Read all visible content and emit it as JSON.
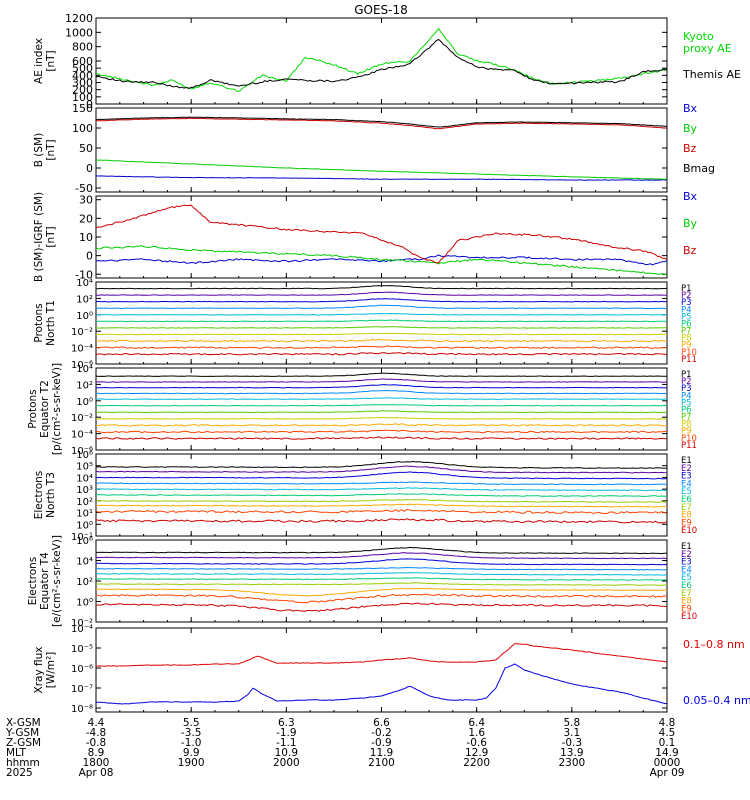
{
  "title": "GOES-18",
  "chart_data": [
    {
      "type": "line",
      "ylabel": [
        "AE index",
        "[nT]"
      ],
      "yscale": "linear",
      "ylim": [
        0,
        1200
      ],
      "yticks": [
        0,
        100,
        200,
        300,
        400,
        500,
        600,
        800,
        1000,
        1200
      ],
      "series": [
        {
          "name": "Kyoto proxy AE",
          "color": "#00dd00",
          "x": [
            0,
            0.3,
            0.6,
            0.8,
            1.0,
            1.2,
            1.5,
            1.75,
            2.0,
            2.2,
            2.5,
            2.75,
            3.0,
            3.3,
            3.6,
            3.8,
            4.0,
            4.2,
            4.4,
            4.6,
            4.8,
            5.0,
            5.2,
            5.5,
            5.75,
            6.0
          ],
          "values": [
            420,
            340,
            260,
            330,
            210,
            300,
            180,
            400,
            320,
            650,
            550,
            420,
            560,
            600,
            1050,
            700,
            600,
            550,
            480,
            350,
            280,
            300,
            320,
            360,
            420,
            480
          ]
        },
        {
          "name": "Themis AE",
          "color": "#000000",
          "x": [
            0,
            0.3,
            0.6,
            0.8,
            1.0,
            1.2,
            1.5,
            1.75,
            2.0,
            2.2,
            2.5,
            2.75,
            3.0,
            3.3,
            3.6,
            3.8,
            4.0,
            4.2,
            4.4,
            4.6,
            4.8,
            5.0,
            5.2,
            5.5,
            5.75,
            6.0
          ],
          "values": [
            390,
            310,
            300,
            250,
            220,
            330,
            250,
            310,
            350,
            330,
            320,
            370,
            480,
            560,
            900,
            650,
            520,
            480,
            470,
            330,
            280,
            290,
            300,
            310,
            450,
            480
          ]
        }
      ]
    },
    {
      "type": "line",
      "ylabel": [
        "B (SM)",
        "[nT]"
      ],
      "yscale": "linear",
      "ylim": [
        -60,
        150
      ],
      "yticks": [
        -50,
        0,
        50,
        100,
        150
      ],
      "series": [
        {
          "name": "Bx",
          "color": "#0000cc",
          "x": [
            0,
            1,
            2,
            3,
            4,
            5,
            6
          ],
          "values": [
            -20,
            -24,
            -25,
            -28,
            -28,
            -30,
            -30
          ]
        },
        {
          "name": "By",
          "color": "#00cc00",
          "x": [
            0,
            1,
            2,
            3,
            4,
            5,
            6
          ],
          "values": [
            20,
            10,
            0,
            -8,
            -15,
            -22,
            -28
          ]
        },
        {
          "name": "Bz",
          "color": "#cc0000",
          "x": [
            0,
            0.5,
            1,
            1.5,
            2,
            2.5,
            3,
            3.3,
            3.6,
            4,
            4.5,
            5,
            5.5,
            6
          ],
          "values": [
            118,
            122,
            124,
            122,
            120,
            118,
            112,
            106,
            98,
            110,
            112,
            110,
            108,
            100
          ]
        },
        {
          "name": "Bmag",
          "color": "#000000",
          "x": [
            0,
            0.5,
            1,
            1.5,
            2,
            2.5,
            3,
            3.3,
            3.6,
            4,
            4.5,
            5,
            5.5,
            6
          ],
          "values": [
            121,
            125,
            127,
            125,
            123,
            121,
            116,
            110,
            102,
            113,
            115,
            113,
            111,
            104
          ]
        }
      ]
    },
    {
      "type": "line",
      "ylabel": [
        "B (SM)-IGRF (SM)",
        "[nT]"
      ],
      "yscale": "linear",
      "ylim": [
        -12,
        32
      ],
      "yticks": [
        -10,
        0,
        10,
        20,
        30
      ],
      "series": [
        {
          "name": "Bx",
          "color": "#0000cc",
          "x": [
            0,
            0.5,
            1,
            1.5,
            2,
            2.5,
            3,
            3.2,
            3.4,
            3.6,
            4,
            4.5,
            5,
            5.5,
            5.8,
            6
          ],
          "values": [
            -3,
            -2,
            -4,
            -2,
            -3,
            -2,
            -3,
            -2,
            -2,
            0,
            -1,
            -1,
            -2,
            -2,
            -5,
            -3
          ]
        },
        {
          "name": "By",
          "color": "#00cc00",
          "x": [
            0,
            0.5,
            1,
            1.5,
            2,
            2.5,
            3,
            3.3,
            3.6,
            4,
            4.5,
            5,
            5.5,
            6
          ],
          "values": [
            4,
            5,
            3,
            2,
            1,
            0,
            -2,
            -3,
            -4,
            -2,
            -4,
            -6,
            -8,
            -10
          ]
        },
        {
          "name": "Bz",
          "color": "#cc0000",
          "x": [
            0,
            0.4,
            0.8,
            1.0,
            1.2,
            1.6,
            2.0,
            2.4,
            2.8,
            3.2,
            3.4,
            3.6,
            3.8,
            4.2,
            4.6,
            5.0,
            5.4,
            5.8,
            6.0
          ],
          "values": [
            15,
            20,
            26,
            27,
            18,
            16,
            14,
            13,
            12,
            5,
            -1,
            -4,
            8,
            12,
            11,
            9,
            5,
            2,
            -2
          ]
        }
      ]
    },
    {
      "type": "line",
      "ylabel": [
        "Protons",
        "North T1"
      ],
      "yscale": "log",
      "ylim": [
        -6,
        4
      ],
      "ytick_labels": [
        "10⁴",
        "10²",
        "10⁰",
        "10⁻²",
        "10⁻⁴",
        "10⁻⁶"
      ],
      "ytick_values": [
        4,
        2,
        0,
        -2,
        -4,
        -6
      ],
      "channels": [
        "P1",
        "P2",
        "P3",
        "P4",
        "P5",
        "P6",
        "P7",
        "P8",
        "P9",
        "P10",
        "P11"
      ],
      "channel_colors": [
        "#000000",
        "#5a00a0",
        "#0000dd",
        "#0088ff",
        "#00bbdd",
        "#00cc77",
        "#55cc00",
        "#cccc00",
        "#ffaa00",
        "#ff4400",
        "#cc0000"
      ],
      "log_levels": [
        3.2,
        2.4,
        1.6,
        0.8,
        0.0,
        -0.8,
        -1.6,
        -2.4,
        -3.2,
        -4.0,
        -4.8
      ]
    },
    {
      "type": "line",
      "ylabel": [
        "Protons",
        "Equator T2",
        "[p/(cm²-s-sr-keV)]"
      ],
      "yscale": "log",
      "ylim": [
        -6,
        4
      ],
      "ytick_labels": [
        "10⁴",
        "10²",
        "10⁰",
        "10⁻²",
        "10⁻⁴",
        "10⁻⁶"
      ],
      "ytick_values": [
        4,
        2,
        0,
        -2,
        -4,
        -6
      ],
      "channels": [
        "P1",
        "P2",
        "P3",
        "P4",
        "P5",
        "P6",
        "P7",
        "P8",
        "P9",
        "P10",
        "P11"
      ],
      "channel_colors": [
        "#000000",
        "#5a00a0",
        "#0000dd",
        "#0088ff",
        "#00bbdd",
        "#00cc77",
        "#55cc00",
        "#cccc00",
        "#ffaa00",
        "#ff4400",
        "#cc0000"
      ],
      "log_levels": [
        3.0,
        2.3,
        1.6,
        0.9,
        0.2,
        -0.6,
        -1.4,
        -2.2,
        -3.0,
        -3.8,
        -4.6
      ]
    },
    {
      "type": "line",
      "ylabel": [
        "Electrons",
        "North T3"
      ],
      "yscale": "log",
      "ylim": [
        -1,
        6
      ],
      "ytick_labels": [
        "10⁶",
        "10⁵",
        "10⁴",
        "10³",
        "10²",
        "10¹",
        "10⁰",
        "10⁻¹"
      ],
      "ytick_values": [
        6,
        5,
        4,
        3,
        2,
        1,
        0,
        -1
      ],
      "channels": [
        "E1",
        "E2",
        "E3",
        "E4",
        "E5",
        "E6",
        "E7",
        "E8",
        "E9",
        "E10"
      ],
      "channel_colors": [
        "#000000",
        "#5a00a0",
        "#0000dd",
        "#0088ff",
        "#00bbdd",
        "#00cc77",
        "#99cc00",
        "#ffaa00",
        "#ff4400",
        "#cc0000"
      ],
      "log_levels": [
        4.9,
        4.5,
        4.0,
        3.5,
        3.0,
        2.5,
        2.0,
        1.6,
        1.1,
        0.3
      ]
    },
    {
      "type": "line",
      "ylabel": [
        "Electrons",
        "Equator T4",
        "[e/(cm²-s-sr-keV)]"
      ],
      "yscale": "log",
      "ylim": [
        -2,
        6
      ],
      "ytick_labels": [
        "10⁶",
        "10⁴",
        "10²",
        "10⁰",
        "10⁻²"
      ],
      "ytick_values": [
        6,
        4,
        2,
        0,
        -2
      ],
      "channels": [
        "E1",
        "E2",
        "E3",
        "E4",
        "E5",
        "E6",
        "E7",
        "E8",
        "E9",
        "E10"
      ],
      "channel_colors": [
        "#000000",
        "#5a00a0",
        "#0000dd",
        "#0088ff",
        "#00bbdd",
        "#00cc77",
        "#99cc00",
        "#ffaa00",
        "#ff4400",
        "#cc0000"
      ],
      "log_levels": [
        4.8,
        4.3,
        3.7,
        3.2,
        2.7,
        2.2,
        1.7,
        1.2,
        0.6,
        -0.3
      ]
    },
    {
      "type": "line",
      "ylabel": [
        "Xray flux",
        "[W/m²]"
      ],
      "yscale": "log",
      "ylim": [
        -8.2,
        -4
      ],
      "ytick_labels": [
        "10⁻⁴",
        "10⁻⁵",
        "10⁻⁶",
        "10⁻⁷",
        "10⁻⁸"
      ],
      "ytick_values": [
        -4,
        -5,
        -6,
        -7,
        -8
      ],
      "series": [
        {
          "name": "0.1–0.8 nm",
          "color": "#dd0000",
          "x": [
            0,
            0.3,
            0.6,
            0.8,
            1.0,
            1.3,
            1.5,
            1.6,
            1.7,
            1.9,
            2.2,
            2.5,
            2.8,
            3.0,
            3.3,
            3.6,
            4.0,
            4.2,
            4.3,
            4.4,
            4.5,
            4.6,
            4.8,
            5.0,
            5.5,
            6.0
          ],
          "values": [
            -5.9,
            -5.9,
            -5.85,
            -5.85,
            -5.85,
            -5.8,
            -5.8,
            -5.6,
            -5.4,
            -5.75,
            -5.75,
            -5.75,
            -5.7,
            -5.6,
            -5.5,
            -5.7,
            -5.7,
            -5.6,
            -5.2,
            -4.8,
            -4.8,
            -4.9,
            -5.0,
            -5.1,
            -5.4,
            -5.7
          ]
        },
        {
          "name": "0.05–0.4 nm",
          "color": "#0000dd",
          "x": [
            0,
            0.3,
            0.6,
            0.8,
            1.0,
            1.3,
            1.5,
            1.6,
            1.65,
            1.75,
            1.9,
            2.2,
            2.5,
            2.8,
            3.0,
            3.2,
            3.3,
            3.5,
            3.7,
            4.0,
            4.1,
            4.2,
            4.3,
            4.4,
            4.5,
            4.7,
            5.0,
            5.5,
            6.0
          ],
          "values": [
            -7.7,
            -7.8,
            -7.7,
            -7.7,
            -7.7,
            -7.7,
            -7.65,
            -7.3,
            -7.0,
            -7.3,
            -7.65,
            -7.6,
            -7.6,
            -7.5,
            -7.4,
            -7.1,
            -6.9,
            -7.4,
            -7.6,
            -7.6,
            -7.5,
            -7.0,
            -6.0,
            -5.8,
            -6.1,
            -6.4,
            -6.8,
            -7.2,
            -7.8
          ]
        }
      ]
    }
  ],
  "legends": [
    [
      {
        "text": "Kyoto",
        "color": "#00dd00"
      },
      {
        "text": "proxy AE",
        "color": "#00dd00"
      },
      {
        "text": "Themis AE",
        "color": "#000000"
      }
    ],
    [
      {
        "text": "Bx",
        "color": "#0000cc"
      },
      {
        "text": "By",
        "color": "#00cc00"
      },
      {
        "text": "Bz",
        "color": "#cc0000"
      },
      {
        "text": "Bmag",
        "color": "#000000"
      }
    ],
    [
      {
        "text": "Bx",
        "color": "#0000cc"
      },
      {
        "text": "By",
        "color": "#00cc00"
      },
      {
        "text": "Bz",
        "color": "#cc0000"
      }
    ],
    [
      {
        "text": "0.1–0.8 nm",
        "color": "#dd0000"
      },
      {
        "text": "0.05–0.4 nm",
        "color": "#0000dd"
      }
    ]
  ],
  "x_axis": {
    "row_labels": [
      "X-GSM",
      "Y-GSM",
      "Z-GSM",
      "MLT",
      "hhmm",
      "2025"
    ],
    "hours": [
      0,
      1,
      2,
      3,
      4,
      5,
      6
    ],
    "columns": [
      [
        "4.4",
        "-4.8",
        "-0.8",
        "8.9",
        "1800",
        "Apr 08"
      ],
      [
        "5.5",
        "-3.5",
        "-1.0",
        "9.9",
        "1900",
        ""
      ],
      [
        "6.3",
        "-1.9",
        "-1.1",
        "10.9",
        "2000",
        ""
      ],
      [
        "6.6",
        "-0.2",
        "-0.9",
        "11.9",
        "2100",
        ""
      ],
      [
        "6.4",
        "1.6",
        "-0.6",
        "12.9",
        "2200",
        ""
      ],
      [
        "5.8",
        "3.1",
        "-0.3",
        "13.9",
        "2300",
        ""
      ],
      [
        "4.8",
        "4.5",
        "0.1",
        "14.9",
        "0000",
        "Apr 09"
      ]
    ]
  }
}
